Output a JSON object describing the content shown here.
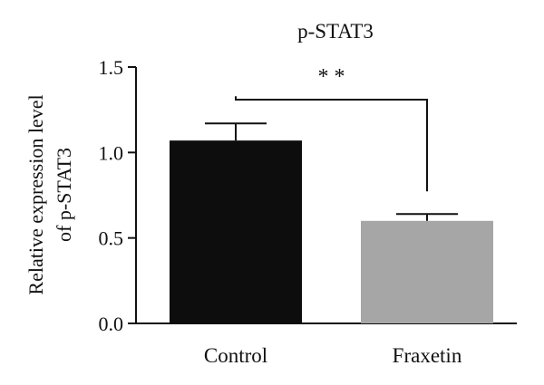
{
  "chart_data": {
    "type": "bar",
    "title": "p-STAT3",
    "xlabel": "",
    "ylabel_lines": [
      "Relative expression level",
      "of p-STAT3"
    ],
    "categories": [
      "Control",
      "Fraxetin"
    ],
    "values": [
      1.07,
      0.6
    ],
    "error_bars": [
      0.1,
      0.04
    ],
    "bar_colors": [
      "#0d0d0d",
      "#a6a6a6"
    ],
    "ylim": [
      0,
      1.5
    ],
    "yticks": [
      0.0,
      0.5,
      1.0,
      1.5
    ],
    "ytick_labels": [
      "0.0",
      "0.5",
      "1.0",
      "1.5"
    ],
    "grid": false,
    "significance": {
      "label": "* *",
      "between": [
        "Control",
        "Fraxetin"
      ]
    }
  }
}
